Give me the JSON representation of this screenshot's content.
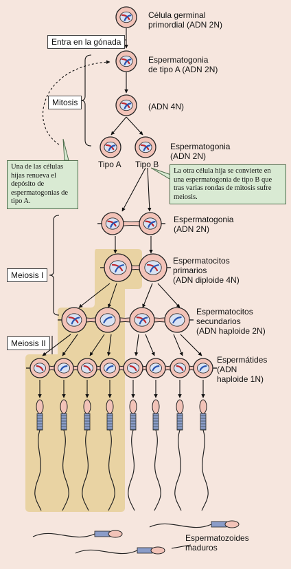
{
  "stage_labels": {
    "pgc": "Célula germinal\nprimordial (ADN 2N)",
    "sg_a": "Espermatogonia\nde tipo A (ADN 2N)",
    "dna4n": "(ADN 4N)",
    "sg_2n": "Espermatogonia\n(ADN 2N)",
    "tipo_a": "Tipo A",
    "tipo_b": "Tipo B",
    "sg_b": "Espermatogonia\n(ADN 2N)",
    "primary": "Espermatocitos\nprimarios\n(ADN diploide 4N)",
    "secondary": "Espermatocitos\nsecundarios\n(ADN haploide 2N)",
    "spermatids": "Espermátides\n(ADN\nhaploide 1N)",
    "mature": "Espermatozoides\nmaduros"
  },
  "process_labels": {
    "enter": "Entra en la gónada",
    "mitosis": "Mitosis",
    "meiosis1": "Meiosis I",
    "meiosis2": "Meiosis II"
  },
  "notes": {
    "renew": "Una de las células hijas renueva el depósito de espermatogonias de tipo A.",
    "other": "La otra célula hija se convierte en una espermatogonia de tipo B que tras varias rondas de mitosis sufre meiosis."
  },
  "colors": {
    "background": "#f6e6de",
    "cell_fill": "#f2c3b8",
    "cell_stroke": "#222222",
    "nucleus_fill": "#d9e2f3",
    "chromosome_red": "#c0282e",
    "chromosome_blue": "#2a55b0",
    "highlight": "#e9d3a3",
    "note_fill": "#d9ead3",
    "sperm_midpiece": "#8a9cc8"
  }
}
